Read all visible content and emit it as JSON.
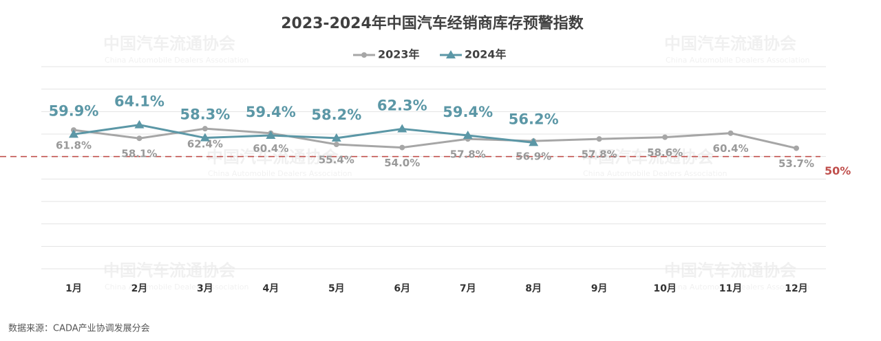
{
  "chart_data": {
    "type": "line",
    "title": "2023-2024年中国汽车经销商库存预警指数",
    "categories": [
      "1月",
      "2月",
      "3月",
      "4月",
      "5月",
      "6月",
      "7月",
      "8月",
      "9月",
      "10月",
      "11月",
      "12月"
    ],
    "series": [
      {
        "name": "2023年",
        "color": "#a6a6a6",
        "marker": "circle",
        "values": [
          61.8,
          58.1,
          62.4,
          60.4,
          55.4,
          54.0,
          57.8,
          56.9,
          57.8,
          58.6,
          60.4,
          53.7
        ],
        "value_labels": [
          "61.8%",
          "58.1%",
          "62.4%",
          "60.4%",
          "55.4%",
          "54.0%",
          "57.8%",
          "56.9%",
          "57.8%",
          "58.6%",
          "60.4%",
          "53.7%"
        ]
      },
      {
        "name": "2024年",
        "color": "#5b97a6",
        "marker": "triangle",
        "values": [
          59.9,
          64.1,
          58.3,
          59.4,
          58.2,
          62.3,
          59.4,
          56.2,
          null,
          null,
          null,
          null
        ],
        "value_labels": [
          "59.9%",
          "64.1%",
          "58.3%",
          "59.4%",
          "58.2%",
          "62.3%",
          "59.4%",
          "56.2%",
          null,
          null,
          null,
          null
        ]
      }
    ],
    "ylim": [
      0,
      90
    ],
    "yticks": [
      0,
      10,
      20,
      30,
      40,
      50,
      60,
      70,
      80,
      90
    ],
    "grid": true,
    "legend": "top",
    "reference_line": {
      "value": 50,
      "label": "50%",
      "color": "#c0504d"
    },
    "watermark": {
      "cn": "中国汽车流通协会",
      "en": "China Automobile Dealers Association"
    },
    "source": "数据来源：CADA产业协调发展分会"
  }
}
